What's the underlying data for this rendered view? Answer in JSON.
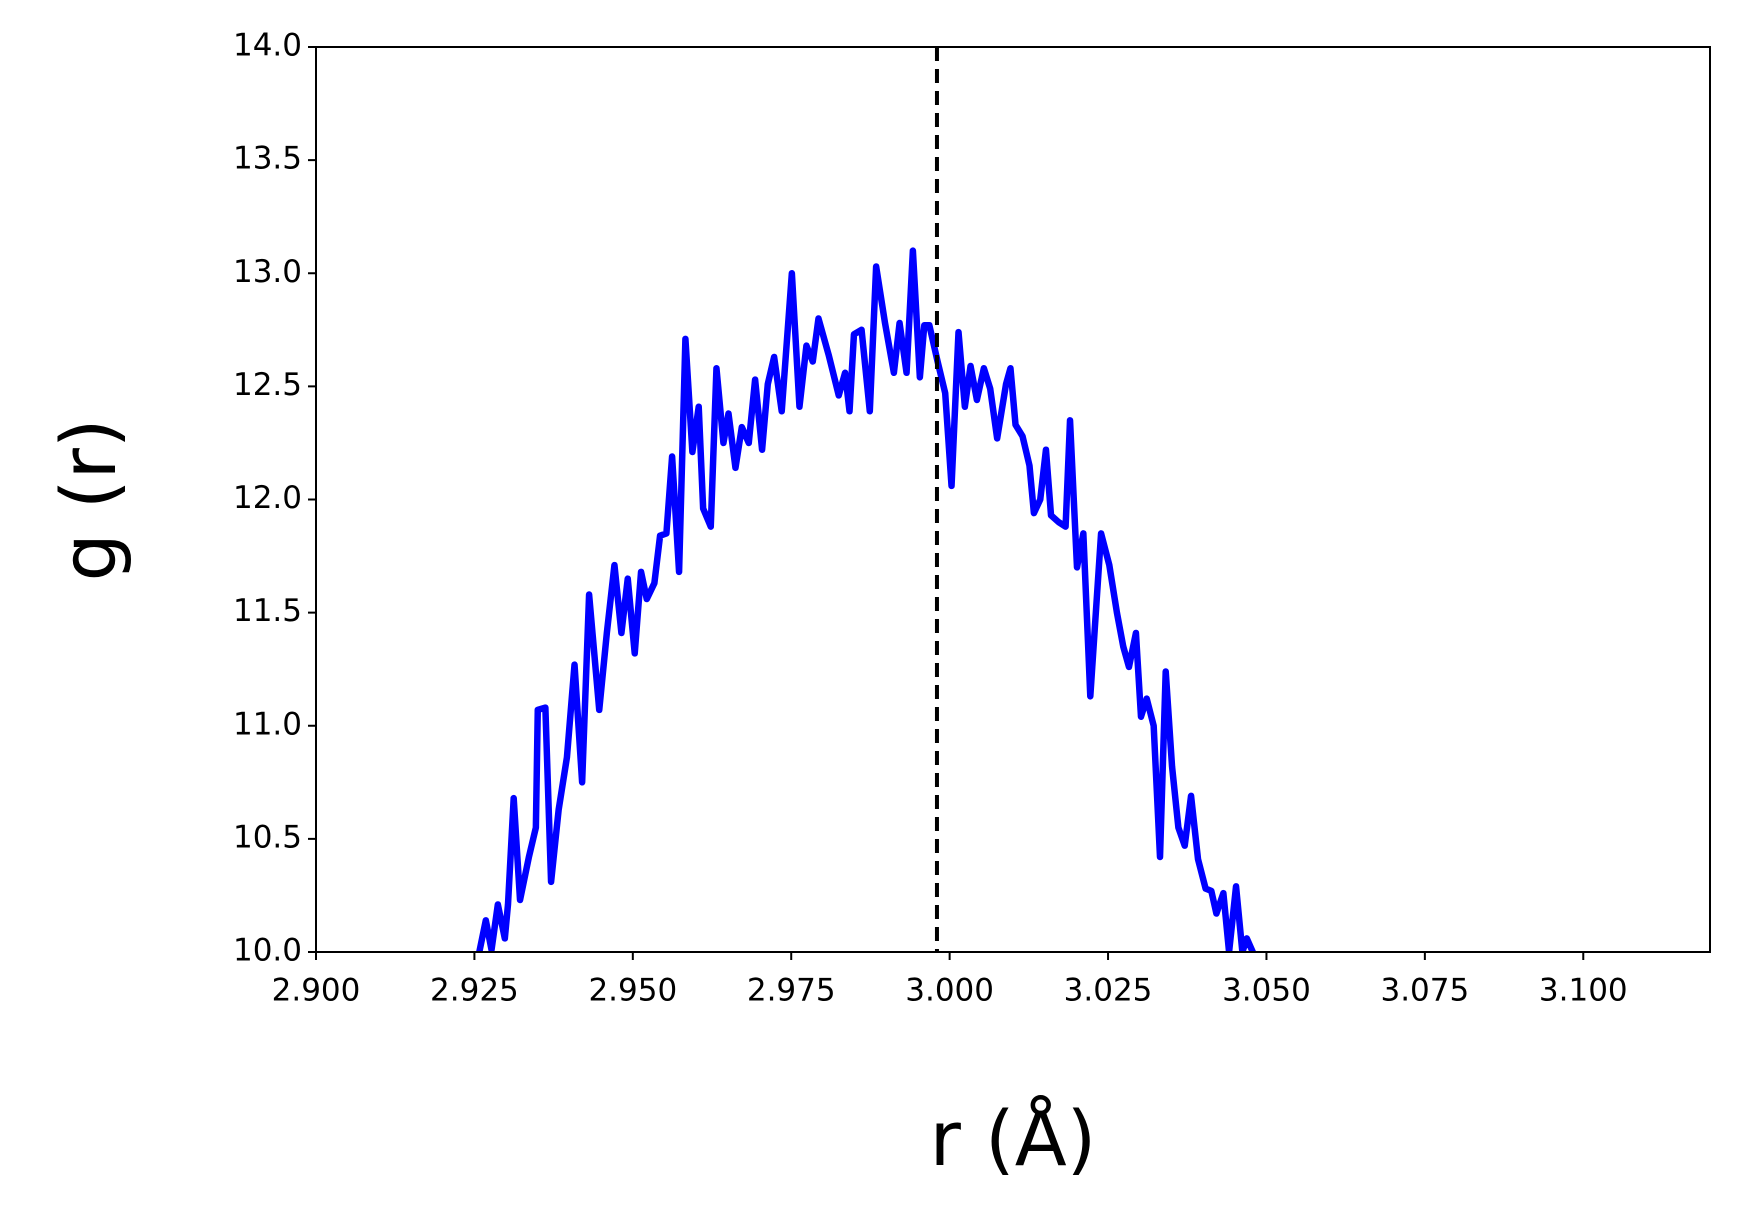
{
  "chart_data": {
    "type": "line",
    "x_label": "r (Å)",
    "y_label": "g (r)",
    "x": [
      2.9257,
      2.9268,
      2.9277,
      2.9287,
      2.9298,
      2.9303,
      2.9312,
      2.9322,
      2.9336,
      2.9347,
      2.935,
      2.9362,
      2.9371,
      2.9383,
      2.9396,
      2.9408,
      2.942,
      2.9431,
      2.9447,
      2.9459,
      2.9471,
      2.9482,
      2.9492,
      2.9503,
      2.9513,
      2.9522,
      2.9534,
      2.9543,
      2.9553,
      2.9562,
      2.9573,
      2.9583,
      2.9594,
      2.9604,
      2.9611,
      2.9623,
      2.9632,
      2.9643,
      2.9651,
      2.9662,
      2.9672,
      2.9683,
      2.9693,
      2.9704,
      2.9713,
      2.9723,
      2.9735,
      2.9751,
      2.9763,
      2.9774,
      2.9784,
      2.9793,
      2.9809,
      2.9825,
      2.9835,
      2.9842,
      2.9849,
      2.9861,
      2.9874,
      2.9884,
      2.9898,
      2.9912,
      2.9921,
      2.9932,
      2.9942,
      2.9953,
      2.996,
      2.9968,
      2.9981,
      2.9993,
      3.0003,
      3.0014,
      3.0024,
      3.0033,
      3.0043,
      3.0054,
      3.0064,
      3.0075,
      3.0089,
      3.0096,
      3.0104,
      3.0115,
      3.0126,
      3.0133,
      3.0143,
      3.0152,
      3.016,
      3.0172,
      3.0183,
      3.019,
      3.0201,
      3.0211,
      3.0222,
      3.0239,
      3.0252,
      3.0264,
      3.0274,
      3.0283,
      3.0294,
      3.0302,
      3.0311,
      3.0322,
      3.0332,
      3.0341,
      3.0351,
      3.0361,
      3.0371,
      3.0381,
      3.0392,
      3.0404,
      3.0413,
      3.0421,
      3.0432,
      3.0441,
      3.0452,
      3.0462,
      3.0469,
      3.048
    ],
    "values": [
      9.99,
      10.14,
      10.01,
      10.21,
      10.06,
      10.21,
      10.68,
      10.23,
      10.42,
      10.55,
      11.07,
      11.08,
      10.31,
      10.63,
      10.86,
      11.27,
      10.75,
      11.58,
      11.07,
      11.41,
      11.71,
      11.41,
      11.65,
      11.32,
      11.68,
      11.56,
      11.63,
      11.84,
      11.85,
      12.19,
      11.68,
      12.71,
      12.21,
      12.41,
      11.96,
      11.88,
      12.58,
      12.25,
      12.38,
      12.14,
      12.32,
      12.25,
      12.53,
      12.22,
      12.51,
      12.63,
      12.39,
      13.0,
      12.41,
      12.68,
      12.61,
      12.8,
      12.64,
      12.46,
      12.56,
      12.39,
      12.73,
      12.75,
      12.39,
      13.03,
      12.78,
      12.56,
      12.78,
      12.56,
      13.1,
      12.54,
      12.77,
      12.77,
      12.61,
      12.47,
      12.06,
      12.74,
      12.41,
      12.59,
      12.44,
      12.58,
      12.49,
      12.27,
      12.51,
      12.58,
      12.33,
      12.28,
      12.15,
      11.94,
      12.0,
      12.22,
      11.93,
      11.9,
      11.88,
      12.35,
      11.7,
      11.85,
      11.13,
      11.85,
      11.71,
      11.5,
      11.35,
      11.26,
      11.41,
      11.04,
      11.12,
      11.0,
      10.42,
      11.24,
      10.82,
      10.55,
      10.47,
      10.69,
      10.41,
      10.28,
      10.27,
      10.17,
      10.26,
      10.0,
      10.29,
      10.0,
      10.06,
      9.99
    ],
    "color": "#0000ff",
    "vline": 2.998,
    "xlim": [
      2.9,
      3.12
    ],
    "ylim": [
      10,
      14
    ],
    "xticks": [
      {
        "value": 2.9,
        "label": "2.900"
      },
      {
        "value": 2.925,
        "label": "2.925"
      },
      {
        "value": 2.95,
        "label": "2.950"
      },
      {
        "value": 2.975,
        "label": "2.975"
      },
      {
        "value": 3.0,
        "label": "3.000"
      },
      {
        "value": 3.025,
        "label": "3.025"
      },
      {
        "value": 3.05,
        "label": "3.050"
      },
      {
        "value": 3.075,
        "label": "3.075"
      },
      {
        "value": 3.1,
        "label": "3.100"
      }
    ],
    "yticks": [
      {
        "value": 10,
        "label": "10.0"
      },
      {
        "value": 10.5,
        "label": "10.5"
      },
      {
        "value": 11,
        "label": "11.0"
      },
      {
        "value": 11.5,
        "label": "11.5"
      },
      {
        "value": 12,
        "label": "12.0"
      },
      {
        "value": 12.5,
        "label": "12.5"
      },
      {
        "value": 13,
        "label": "13.0"
      },
      {
        "value": 13.5,
        "label": "13.5"
      },
      {
        "value": 14,
        "label": "14.0"
      }
    ]
  }
}
